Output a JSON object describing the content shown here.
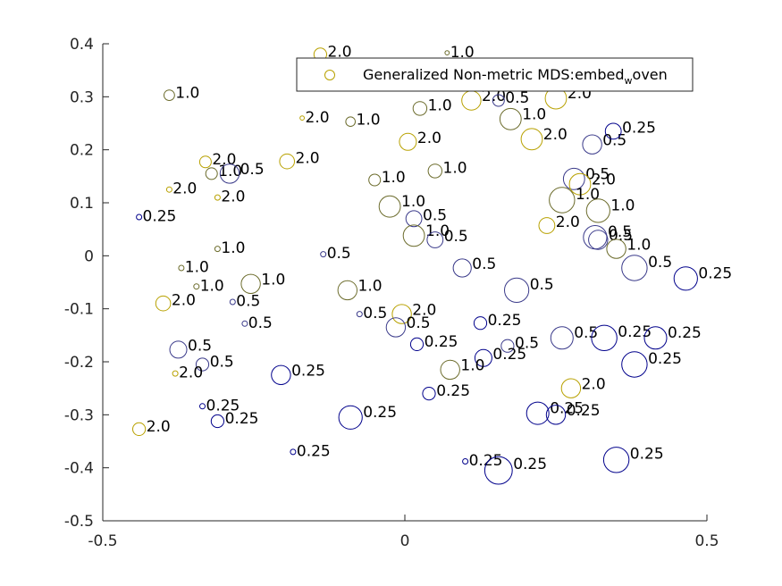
{
  "chart_data": {
    "type": "scatter",
    "xlim": [
      -0.5,
      0.5
    ],
    "ylim": [
      -0.5,
      0.4
    ],
    "x_ticks": [
      -0.5,
      0,
      0.5
    ],
    "x_tick_labels": [
      "-0.5",
      "0",
      "0.5"
    ],
    "y_ticks": [
      -0.5,
      -0.4,
      -0.3,
      -0.2,
      -0.1,
      0,
      0.1,
      0.2,
      0.3,
      0.4
    ],
    "y_tick_labels": [
      "-0.5",
      "-0.4",
      "-0.3",
      "-0.2",
      "-0.1",
      "0",
      "0.1",
      "0.2",
      "0.3",
      "0.4"
    ],
    "grid": false,
    "legend": {
      "placement": "top-right",
      "prefix": "Generalized Non-metric MDS:embed",
      "subscript": "w",
      "suffix": "oven"
    },
    "colors": {
      "2.0": "#b8a100",
      "1.0": "#6b6b2b",
      "0.5": "#3a3a8a",
      "0.25": "#00008b"
    },
    "points": [
      {
        "x": -0.14,
        "y": 0.38,
        "r": 0.012,
        "label": "2.0"
      },
      {
        "x": 0.07,
        "y": 0.383,
        "r": 0.004,
        "label": "1.0"
      },
      {
        "x": -0.39,
        "y": 0.303,
        "r": 0.01,
        "label": "1.0"
      },
      {
        "x": -0.17,
        "y": 0.26,
        "r": 0.004,
        "label": "2.0"
      },
      {
        "x": -0.09,
        "y": 0.253,
        "r": 0.009,
        "label": "1.0"
      },
      {
        "x": 0.025,
        "y": 0.278,
        "r": 0.013,
        "label": "1.0"
      },
      {
        "x": 0.11,
        "y": 0.293,
        "r": 0.018,
        "label": "2.0"
      },
      {
        "x": 0.155,
        "y": 0.293,
        "r": 0.011,
        "label": "0.5"
      },
      {
        "x": 0.25,
        "y": 0.297,
        "r": 0.02,
        "label": "2.0"
      },
      {
        "x": 0.175,
        "y": 0.258,
        "r": 0.02,
        "label": "1.0"
      },
      {
        "x": 0.005,
        "y": 0.215,
        "r": 0.016,
        "label": "2.0"
      },
      {
        "x": 0.21,
        "y": 0.22,
        "r": 0.02,
        "label": "2.0"
      },
      {
        "x": 0.31,
        "y": 0.21,
        "r": 0.018,
        "label": "0.5"
      },
      {
        "x": 0.345,
        "y": 0.235,
        "r": 0.015,
        "label": "0.25"
      },
      {
        "x": -0.33,
        "y": 0.177,
        "r": 0.011,
        "label": "2.0"
      },
      {
        "x": -0.195,
        "y": 0.178,
        "r": 0.014,
        "label": "2.0"
      },
      {
        "x": -0.32,
        "y": 0.155,
        "r": 0.011,
        "label": "1.0"
      },
      {
        "x": -0.29,
        "y": 0.155,
        "r": 0.018,
        "label": "0.5"
      },
      {
        "x": 0.05,
        "y": 0.16,
        "r": 0.013,
        "label": "1.0"
      },
      {
        "x": -0.05,
        "y": 0.143,
        "r": 0.011,
        "label": "1.0"
      },
      {
        "x": -0.39,
        "y": 0.125,
        "r": 0.005,
        "label": "2.0"
      },
      {
        "x": -0.31,
        "y": 0.11,
        "r": 0.005,
        "label": "2.0"
      },
      {
        "x": 0.28,
        "y": 0.145,
        "r": 0.02,
        "label": "0.5"
      },
      {
        "x": 0.29,
        "y": 0.135,
        "r": 0.02,
        "label": "2.0"
      },
      {
        "x": 0.26,
        "y": 0.105,
        "r": 0.024,
        "label": "1.0"
      },
      {
        "x": 0.32,
        "y": 0.085,
        "r": 0.022,
        "label": "1.0"
      },
      {
        "x": -0.44,
        "y": 0.073,
        "r": 0.005,
        "label": "0.25"
      },
      {
        "x": -0.025,
        "y": 0.093,
        "r": 0.02,
        "label": "1.0"
      },
      {
        "x": 0.015,
        "y": 0.07,
        "r": 0.015,
        "label": "0.5"
      },
      {
        "x": 0.235,
        "y": 0.057,
        "r": 0.015,
        "label": "2.0"
      },
      {
        "x": 0.015,
        "y": 0.038,
        "r": 0.02,
        "label": "1.0"
      },
      {
        "x": 0.05,
        "y": 0.03,
        "r": 0.015,
        "label": "0.5"
      },
      {
        "x": 0.315,
        "y": 0.035,
        "r": 0.022,
        "label": "0.5"
      },
      {
        "x": 0.32,
        "y": 0.03,
        "r": 0.018,
        "label": "0.5"
      },
      {
        "x": 0.35,
        "y": 0.013,
        "r": 0.018,
        "label": "1.0"
      },
      {
        "x": -0.31,
        "y": 0.013,
        "r": 0.005,
        "label": "1.0"
      },
      {
        "x": -0.135,
        "y": 0.003,
        "r": 0.005,
        "label": "0.5"
      },
      {
        "x": 0.38,
        "y": -0.023,
        "r": 0.024,
        "label": "0.5"
      },
      {
        "x": 0.095,
        "y": -0.023,
        "r": 0.017,
        "label": "0.5"
      },
      {
        "x": 0.465,
        "y": -0.043,
        "r": 0.022,
        "label": "0.25"
      },
      {
        "x": -0.37,
        "y": -0.023,
        "r": 0.005,
        "label": "1.0"
      },
      {
        "x": -0.345,
        "y": -0.058,
        "r": 0.005,
        "label": "1.0"
      },
      {
        "x": -0.255,
        "y": -0.053,
        "r": 0.018,
        "label": "1.0"
      },
      {
        "x": -0.095,
        "y": -0.065,
        "r": 0.018,
        "label": "1.0"
      },
      {
        "x": 0.185,
        "y": -0.065,
        "r": 0.023,
        "label": "0.5"
      },
      {
        "x": -0.4,
        "y": -0.09,
        "r": 0.014,
        "label": "2.0"
      },
      {
        "x": -0.285,
        "y": -0.087,
        "r": 0.005,
        "label": "0.5"
      },
      {
        "x": -0.075,
        "y": -0.11,
        "r": 0.005,
        "label": "0.5"
      },
      {
        "x": -0.005,
        "y": -0.11,
        "r": 0.018,
        "label": "2.0"
      },
      {
        "x": -0.265,
        "y": -0.128,
        "r": 0.005,
        "label": "0.5"
      },
      {
        "x": -0.015,
        "y": -0.135,
        "r": 0.018,
        "label": "0.5"
      },
      {
        "x": 0.125,
        "y": -0.127,
        "r": 0.012,
        "label": "0.25"
      },
      {
        "x": 0.02,
        "y": -0.167,
        "r": 0.012,
        "label": "0.25"
      },
      {
        "x": 0.17,
        "y": -0.17,
        "r": 0.012,
        "label": "0.5"
      },
      {
        "x": 0.26,
        "y": -0.155,
        "r": 0.021,
        "label": "0.5"
      },
      {
        "x": 0.33,
        "y": -0.155,
        "r": 0.024,
        "label": "0.25"
      },
      {
        "x": 0.415,
        "y": -0.155,
        "r": 0.021,
        "label": "0.25"
      },
      {
        "x": -0.375,
        "y": -0.177,
        "r": 0.016,
        "label": "0.5"
      },
      {
        "x": 0.13,
        "y": -0.193,
        "r": 0.016,
        "label": "0.25"
      },
      {
        "x": -0.335,
        "y": -0.205,
        "r": 0.012,
        "label": "0.5"
      },
      {
        "x": 0.075,
        "y": -0.215,
        "r": 0.018,
        "label": "1.0"
      },
      {
        "x": 0.38,
        "y": -0.205,
        "r": 0.024,
        "label": "0.25"
      },
      {
        "x": -0.38,
        "y": -0.222,
        "r": 0.005,
        "label": "2.0"
      },
      {
        "x": -0.205,
        "y": -0.225,
        "r": 0.018,
        "label": "0.25"
      },
      {
        "x": 0.275,
        "y": -0.25,
        "r": 0.018,
        "label": "2.0"
      },
      {
        "x": 0.04,
        "y": -0.26,
        "r": 0.012,
        "label": "0.25"
      },
      {
        "x": -0.335,
        "y": -0.284,
        "r": 0.005,
        "label": "0.25"
      },
      {
        "x": 0.22,
        "y": -0.297,
        "r": 0.021,
        "label": "0.25"
      },
      {
        "x": 0.25,
        "y": -0.3,
        "r": 0.018,
        "label": "0.25"
      },
      {
        "x": -0.31,
        "y": -0.312,
        "r": 0.012,
        "label": "0.25"
      },
      {
        "x": -0.09,
        "y": -0.305,
        "r": 0.022,
        "label": "0.25"
      },
      {
        "x": -0.44,
        "y": -0.327,
        "r": 0.012,
        "label": "2.0"
      },
      {
        "x": -0.185,
        "y": -0.37,
        "r": 0.005,
        "label": "0.25"
      },
      {
        "x": 0.1,
        "y": -0.388,
        "r": 0.005,
        "label": "0.25"
      },
      {
        "x": 0.35,
        "y": -0.385,
        "r": 0.024,
        "label": "0.25"
      },
      {
        "x": 0.155,
        "y": -0.405,
        "r": 0.026,
        "label": "0.25"
      }
    ]
  }
}
